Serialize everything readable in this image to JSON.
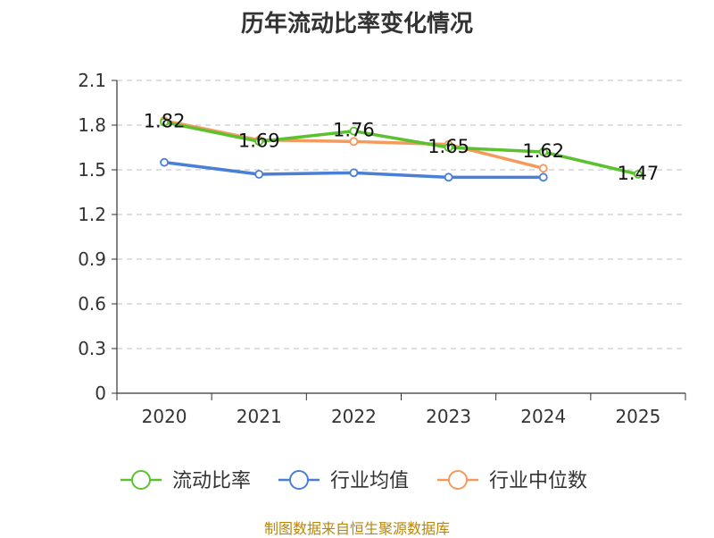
{
  "chart_data": {
    "type": "line",
    "title": "历年流动比率变化情况",
    "categories": [
      "2020",
      "2021",
      "2022",
      "2023",
      "2024",
      "2025"
    ],
    "y_ticks": [
      "0",
      "0.3",
      "0.6",
      "0.9",
      "1.2",
      "1.5",
      "1.8",
      "2.1"
    ],
    "ylim": [
      0,
      2.1
    ],
    "grid": true,
    "legend_position": "bottom",
    "series": [
      {
        "name": "流动比率",
        "color": "#5cc12f",
        "values": [
          1.82,
          1.69,
          1.76,
          1.65,
          1.62,
          1.47
        ],
        "labels": [
          "1.82",
          "1.69",
          "1.76",
          "1.65",
          "1.62",
          "1.47"
        ]
      },
      {
        "name": "行业均值",
        "color": "#4a7fd6",
        "values": [
          1.55,
          1.47,
          1.48,
          1.45,
          1.45,
          null
        ]
      },
      {
        "name": "行业中位数",
        "color": "#f59a5d",
        "values": [
          1.83,
          1.7,
          1.69,
          1.67,
          1.51,
          null
        ]
      }
    ]
  },
  "footer": "制图数据来自恒生聚源数据库"
}
